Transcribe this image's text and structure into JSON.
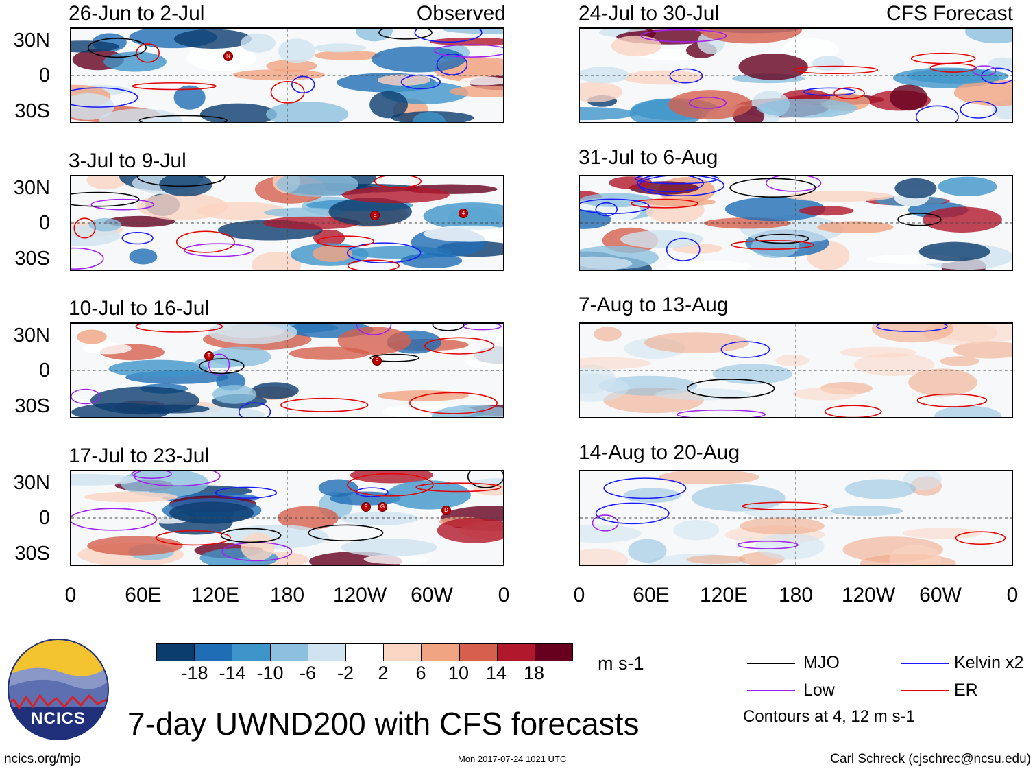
{
  "panels_left": [
    {
      "period": "26-Jun to 2-Jul",
      "label": "Observed"
    },
    {
      "period": "3-Jul to 9-Jul",
      "label": ""
    },
    {
      "period": "10-Jul to 16-Jul",
      "label": ""
    },
    {
      "period": "17-Jul to 23-Jul",
      "label": ""
    }
  ],
  "panels_right": [
    {
      "period": "24-Jul to 30-Jul",
      "label": "CFS Forecast"
    },
    {
      "period": "31-Jul to 6-Aug",
      "label": ""
    },
    {
      "period": "7-Aug to 13-Aug",
      "label": ""
    },
    {
      "period": "14-Aug to 20-Aug",
      "label": ""
    }
  ],
  "lat_labels": [
    "30N",
    "0",
    "30S"
  ],
  "lon_labels": [
    "0",
    "60E",
    "120E",
    "180",
    "120W",
    "60W",
    "0"
  ],
  "colorbar": {
    "ticks": [
      "-18",
      "-14",
      "-10",
      "-6",
      "-2",
      "2",
      "6",
      "10",
      "14",
      "18"
    ],
    "colors": [
      "#0b3c6e",
      "#1f6db4",
      "#3e95c9",
      "#8cc0de",
      "#cfe3f0",
      "#ffffff",
      "#fbd5c3",
      "#f1a482",
      "#d6604d",
      "#b2182b",
      "#67001f"
    ],
    "units": "m s-1"
  },
  "legend": {
    "items": [
      {
        "name": "MJO",
        "color": "#000000"
      },
      {
        "name": "Kelvin x2",
        "color": "#1a1aff"
      },
      {
        "name": "Low",
        "color": "#a020f0"
      },
      {
        "name": "ER",
        "color": "#e60000"
      }
    ],
    "note": "Contours at 4, 12 m s-1"
  },
  "logo_text": "NCICS",
  "main_title": "7-day UWND200 with CFS forecasts",
  "footer": {
    "left": "ncics.org/mjo",
    "center": "Mon 2017-07-24 1021 UTC",
    "right": "Carl Schreck (cjschrec@ncsu.edu)"
  },
  "storm_markers": [
    {
      "panel": "left-0",
      "letter": "N"
    },
    {
      "panel": "left-1",
      "letter": "E"
    },
    {
      "panel": "left-1",
      "letter": "4"
    },
    {
      "panel": "left-2",
      "letter": "T"
    },
    {
      "panel": "left-2",
      "letter": "F"
    },
    {
      "panel": "left-3",
      "letter": "9"
    },
    {
      "panel": "left-3",
      "letter": "G"
    },
    {
      "panel": "left-3",
      "letter": "D"
    }
  ]
}
